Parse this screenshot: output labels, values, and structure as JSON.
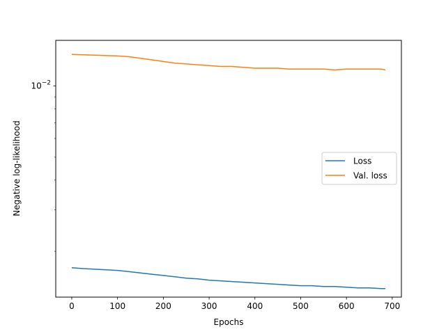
{
  "chart_data": {
    "type": "line",
    "title": "",
    "xlabel": "Epochs",
    "ylabel": "Negative log-likelihood",
    "xlim": [
      -35,
      720
    ],
    "ylim": [
      0.00128,
      0.0156
    ],
    "yscale": "log",
    "x_ticks": [
      0,
      100,
      200,
      300,
      400,
      500,
      600,
      700
    ],
    "y_major_ticks": [
      {
        "value": 0.01,
        "base": "10",
        "exponent": "−2"
      }
    ],
    "y_minor_ticks": [
      0.002,
      0.003,
      0.004,
      0.005,
      0.006,
      0.007,
      0.008,
      0.009
    ],
    "grid": false,
    "legend_position": "center-right",
    "series": [
      {
        "name": "Loss",
        "color": "#1f77b4",
        "x": [
          0,
          25,
          50,
          75,
          100,
          125,
          150,
          175,
          200,
          225,
          250,
          275,
          300,
          325,
          350,
          375,
          400,
          425,
          450,
          475,
          500,
          525,
          550,
          575,
          600,
          625,
          650,
          675,
          685
        ],
        "y": [
          0.001705,
          0.00169,
          0.00168,
          0.00167,
          0.00166,
          0.00164,
          0.00162,
          0.0016,
          0.00158,
          0.00156,
          0.00154,
          0.00153,
          0.00151,
          0.0015,
          0.00149,
          0.00148,
          0.00147,
          0.00146,
          0.00145,
          0.00144,
          0.00143,
          0.00143,
          0.00142,
          0.00142,
          0.00141,
          0.0014,
          0.0014,
          0.00139,
          0.00139
        ]
      },
      {
        "name": "Val. loss",
        "color": "#ff7f0e",
        "x": [
          0,
          25,
          50,
          75,
          100,
          125,
          150,
          175,
          200,
          225,
          250,
          275,
          300,
          325,
          350,
          375,
          400,
          425,
          450,
          475,
          500,
          525,
          550,
          575,
          600,
          625,
          650,
          675,
          685
        ],
        "y": [
          0.0136,
          0.01355,
          0.0135,
          0.01345,
          0.0134,
          0.0133,
          0.0131,
          0.0129,
          0.0127,
          0.0125,
          0.0124,
          0.0123,
          0.0122,
          0.0121,
          0.0121,
          0.012,
          0.0119,
          0.0119,
          0.0119,
          0.0118,
          0.0118,
          0.0118,
          0.0118,
          0.0117,
          0.0118,
          0.0118,
          0.0118,
          0.0118,
          0.0117
        ]
      }
    ]
  }
}
